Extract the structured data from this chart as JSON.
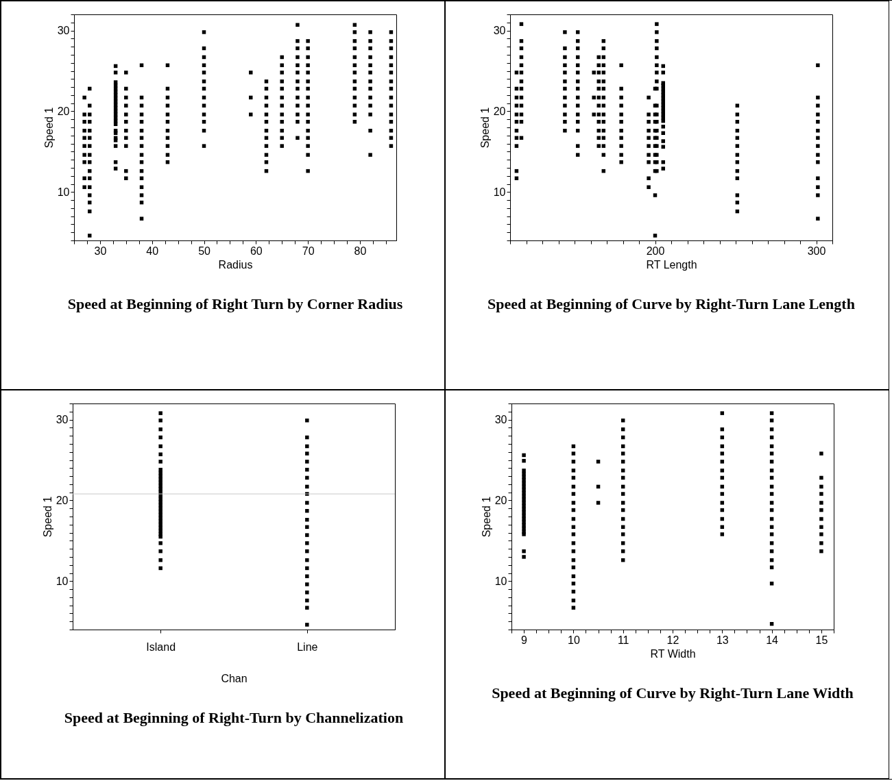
{
  "chart_data": [
    {
      "type": "scatter",
      "title": "Speed at Beginning of Right Turn by Corner Radius",
      "xlabel": "Radius",
      "ylabel": "Speed 1",
      "marker": "square",
      "xlim": [
        25,
        87
      ],
      "ylim": [
        4,
        32
      ],
      "xticks": [
        {
          "value": 25,
          "label": null
        },
        {
          "value": 27.5,
          "label": null
        },
        30,
        {
          "value": 32.5,
          "label": null
        },
        {
          "value": 35,
          "label": null
        },
        {
          "value": 37.5,
          "label": null
        },
        40,
        {
          "value": 42.5,
          "label": null
        },
        {
          "value": 45,
          "label": null
        },
        {
          "value": 47.5,
          "label": null
        },
        50,
        {
          "value": 52.5,
          "label": null
        },
        {
          "value": 55,
          "label": null
        },
        {
          "value": 57.5,
          "label": null
        },
        60,
        {
          "value": 62.5,
          "label": null
        },
        {
          "value": 65,
          "label": null
        },
        {
          "value": 67.5,
          "label": null
        },
        70,
        {
          "value": 72.5,
          "label": null
        },
        {
          "value": 75,
          "label": null
        },
        {
          "value": 77.5,
          "label": null
        },
        80,
        {
          "value": 82.5,
          "label": null
        },
        {
          "value": 85,
          "label": null
        }
      ],
      "yticks": [
        {
          "value": 4,
          "label": null
        },
        {
          "value": 5,
          "label": null
        },
        {
          "value": 6,
          "label": null
        },
        {
          "value": 7,
          "label": null
        },
        {
          "value": 8,
          "label": null
        },
        {
          "value": 9,
          "label": null
        },
        10,
        {
          "value": 11,
          "label": null
        },
        {
          "value": 12,
          "label": null
        },
        {
          "value": 13,
          "label": null
        },
        {
          "value": 14,
          "label": null
        },
        {
          "value": 15,
          "label": null
        },
        {
          "value": 16,
          "label": null
        },
        {
          "value": 17,
          "label": null
        },
        {
          "value": 18,
          "label": null
        },
        {
          "value": 19,
          "label": null
        },
        20,
        {
          "value": 21,
          "label": null
        },
        {
          "value": 22,
          "label": null
        },
        {
          "value": 23,
          "label": null
        },
        {
          "value": 24,
          "label": null
        },
        {
          "value": 25,
          "label": null
        },
        {
          "value": 26,
          "label": null
        },
        {
          "value": 27,
          "label": null
        },
        {
          "value": 28,
          "label": null
        },
        {
          "value": 29,
          "label": null
        },
        30,
        {
          "value": 31,
          "label": null
        },
        {
          "value": 32,
          "label": null
        }
      ],
      "series": [
        {
          "color": "#000000",
          "x": [
            27,
            27,
            27,
            27,
            27,
            27,
            27,
            27,
            27,
            27,
            28,
            28,
            28,
            28,
            28,
            28,
            28,
            28,
            28,
            28,
            28,
            28,
            28,
            28,
            28,
            28,
            33,
            33,
            33,
            33,
            33,
            33,
            33,
            33,
            33,
            33,
            33,
            33,
            33,
            33,
            33,
            33,
            33,
            33,
            33,
            33,
            33,
            33,
            33,
            35,
            35,
            35,
            35,
            35,
            35,
            35,
            35,
            35,
            35,
            35,
            38,
            38,
            38,
            38,
            38,
            38,
            38,
            38,
            38,
            38,
            38,
            38,
            38,
            38,
            38,
            38,
            43,
            43,
            43,
            43,
            43,
            43,
            43,
            43,
            43,
            43,
            43,
            50,
            50,
            50,
            50,
            50,
            50,
            50,
            50,
            50,
            50,
            50,
            50,
            50,
            59,
            59,
            59,
            62,
            62,
            62,
            62,
            62,
            62,
            62,
            62,
            62,
            62,
            62,
            62,
            65,
            65,
            65,
            65,
            65,
            65,
            65,
            65,
            65,
            65,
            65,
            65,
            68,
            68,
            68,
            68,
            68,
            68,
            68,
            68,
            68,
            68,
            68,
            68,
            68,
            70,
            70,
            70,
            70,
            70,
            70,
            70,
            70,
            70,
            70,
            70,
            70,
            70,
            70,
            70,
            70,
            79,
            79,
            79,
            79,
            79,
            79,
            79,
            79,
            79,
            79,
            79,
            79,
            79,
            82,
            82,
            82,
            82,
            82,
            82,
            82,
            82,
            82,
            82,
            82,
            82,
            82,
            86,
            86,
            86,
            86,
            86,
            86,
            86,
            86,
            86,
            86,
            86,
            86,
            86,
            86,
            86
          ],
          "values": [
            21.7,
            19.6,
            18.7,
            17.6,
            16.7,
            15.7,
            14.6,
            13.7,
            11.7,
            10.6,
            22.8,
            20.7,
            19.6,
            18.7,
            17.6,
            16.7,
            15.7,
            14.6,
            13.7,
            12.6,
            11.7,
            10.6,
            9.6,
            8.7,
            7.6,
            4.6,
            25.6,
            24.8,
            23.6,
            23.2,
            22.8,
            22.4,
            22.0,
            21.6,
            21.2,
            20.8,
            20.4,
            20.0,
            19.6,
            19.2,
            18.8,
            18.4,
            17.6,
            17.3,
            16.7,
            16.4,
            15.7,
            13.7,
            12.9,
            24.8,
            22.8,
            21.7,
            20.7,
            19.6,
            18.7,
            17.6,
            16.7,
            15.7,
            12.6,
            11.7,
            25.7,
            21.7,
            20.7,
            19.6,
            18.7,
            17.6,
            16.7,
            15.7,
            14.6,
            13.7,
            12.6,
            11.7,
            10.6,
            9.6,
            8.7,
            6.7,
            25.7,
            22.8,
            21.7,
            20.7,
            19.6,
            18.7,
            17.6,
            16.7,
            15.7,
            14.6,
            13.7,
            29.8,
            27.8,
            26.7,
            25.7,
            24.8,
            23.7,
            22.8,
            21.7,
            20.7,
            19.6,
            18.7,
            17.6,
            15.7,
            24.8,
            21.7,
            19.6,
            23.7,
            22.8,
            21.7,
            20.7,
            19.6,
            18.7,
            17.6,
            16.7,
            15.7,
            14.6,
            13.7,
            12.6,
            26.7,
            25.7,
            24.8,
            23.7,
            22.8,
            21.7,
            20.7,
            19.6,
            18.7,
            17.6,
            16.7,
            15.7,
            30.7,
            28.7,
            27.8,
            26.7,
            25.7,
            24.8,
            23.7,
            22.8,
            21.7,
            20.7,
            19.6,
            18.7,
            16.7,
            28.7,
            27.8,
            26.7,
            25.7,
            24.8,
            23.7,
            22.8,
            21.7,
            20.7,
            19.6,
            18.7,
            17.6,
            16.7,
            15.7,
            14.6,
            12.6,
            30.7,
            29.8,
            28.7,
            27.8,
            26.7,
            25.7,
            24.8,
            23.7,
            22.8,
            21.7,
            20.7,
            19.6,
            18.7,
            29.8,
            28.7,
            27.8,
            26.7,
            25.7,
            24.8,
            23.7,
            22.8,
            21.7,
            20.7,
            19.6,
            17.6,
            14.6,
            29.8,
            28.7,
            27.8,
            26.7,
            25.7,
            24.8,
            23.7,
            22.8,
            21.7,
            20.7,
            19.6,
            18.7,
            17.6,
            16.7,
            15.7
          ]
        }
      ]
    },
    {
      "type": "scatter",
      "title": "Speed at Beginning of Curve by Right-Turn Lane Length",
      "xlabel": "RT Length",
      "ylabel": "Speed 1",
      "marker": "square",
      "xlim": [
        110,
        310
      ],
      "ylim": [
        4,
        32
      ],
      "xticks": [
        {
          "value": 110,
          "label": null
        },
        {
          "value": 120,
          "label": null
        },
        {
          "value": 130,
          "label": null
        },
        {
          "value": 140,
          "label": null
        },
        {
          "value": 150,
          "label": null
        },
        {
          "value": 160,
          "label": null
        },
        {
          "value": 170,
          "label": null
        },
        {
          "value": 180,
          "label": null
        },
        {
          "value": 190,
          "label": null
        },
        200,
        {
          "value": 210,
          "label": null
        },
        {
          "value": 220,
          "label": null
        },
        {
          "value": 230,
          "label": null
        },
        {
          "value": 240,
          "label": null
        },
        {
          "value": 250,
          "label": null
        },
        {
          "value": 260,
          "label": null
        },
        {
          "value": 270,
          "label": null
        },
        {
          "value": 280,
          "label": null
        },
        {
          "value": 290,
          "label": null
        },
        300,
        {
          "value": 310,
          "label": null
        }
      ],
      "yticks": [
        {
          "value": 4,
          "label": null
        },
        {
          "value": 5,
          "label": null
        },
        {
          "value": 6,
          "label": null
        },
        {
          "value": 7,
          "label": null
        },
        {
          "value": 8,
          "label": null
        },
        {
          "value": 9,
          "label": null
        },
        10,
        {
          "value": 11,
          "label": null
        },
        {
          "value": 12,
          "label": null
        },
        {
          "value": 13,
          "label": null
        },
        {
          "value": 14,
          "label": null
        },
        {
          "value": 15,
          "label": null
        },
        {
          "value": 16,
          "label": null
        },
        {
          "value": 17,
          "label": null
        },
        {
          "value": 18,
          "label": null
        },
        {
          "value": 19,
          "label": null
        },
        20,
        {
          "value": 21,
          "label": null
        },
        {
          "value": 22,
          "label": null
        },
        {
          "value": 23,
          "label": null
        },
        {
          "value": 24,
          "label": null
        },
        {
          "value": 25,
          "label": null
        },
        {
          "value": 26,
          "label": null
        },
        {
          "value": 27,
          "label": null
        },
        {
          "value": 28,
          "label": null
        },
        {
          "value": 29,
          "label": null
        },
        30,
        {
          "value": 31,
          "label": null
        },
        {
          "value": 32,
          "label": null
        }
      ],
      "series": [
        {
          "color": "#000000",
          "x": [
            114,
            114,
            114,
            114,
            114,
            114,
            114,
            114,
            114,
            114,
            114,
            117,
            117,
            117,
            117,
            117,
            117,
            117,
            117,
            117,
            117,
            117,
            117,
            117,
            144,
            144,
            144,
            144,
            144,
            144,
            144,
            144,
            144,
            144,
            144,
            144,
            152,
            152,
            152,
            152,
            152,
            152,
            152,
            152,
            152,
            152,
            152,
            152,
            152,
            152,
            152,
            162,
            162,
            162,
            165,
            165,
            165,
            165,
            165,
            165,
            165,
            165,
            165,
            165,
            165,
            165,
            168,
            168,
            168,
            168,
            168,
            168,
            168,
            168,
            168,
            168,
            168,
            168,
            168,
            168,
            168,
            168,
            179,
            179,
            179,
            179,
            179,
            179,
            179,
            179,
            179,
            179,
            179,
            196,
            196,
            196,
            196,
            196,
            196,
            196,
            196,
            196,
            196,
            200,
            200,
            200,
            200,
            200,
            200,
            200,
            200,
            200,
            200,
            200,
            200,
            201,
            201,
            201,
            201,
            201,
            201,
            201,
            201,
            201,
            201,
            201,
            201,
            201,
            201,
            201,
            201,
            201,
            201,
            205,
            205,
            205,
            205,
            205,
            205,
            205,
            205,
            205,
            205,
            205,
            205,
            205,
            205,
            205,
            205,
            205,
            205,
            205,
            205,
            205,
            251,
            251,
            251,
            251,
            251,
            251,
            251,
            251,
            251,
            251,
            251,
            251,
            251,
            301,
            301,
            301,
            301,
            301,
            301,
            301,
            301,
            301,
            301,
            301,
            301,
            301,
            301
          ],
          "values": [
            24.8,
            22.8,
            21.7,
            20.7,
            19.6,
            18.7,
            17.6,
            16.7,
            15.7,
            12.6,
            11.7,
            30.8,
            28.7,
            27.8,
            26.7,
            25.7,
            24.8,
            23.7,
            22.8,
            21.7,
            20.7,
            19.6,
            18.7,
            16.7,
            29.8,
            27.8,
            26.7,
            25.7,
            24.8,
            23.7,
            22.8,
            21.7,
            20.7,
            19.6,
            18.7,
            17.6,
            29.8,
            28.7,
            27.8,
            26.7,
            25.7,
            24.8,
            23.7,
            22.8,
            21.7,
            20.7,
            19.6,
            18.7,
            17.6,
            15.7,
            14.6,
            24.8,
            21.7,
            19.6,
            26.7,
            25.7,
            24.8,
            23.7,
            22.8,
            21.7,
            20.7,
            19.6,
            18.7,
            17.6,
            16.7,
            15.7,
            28.7,
            27.8,
            26.7,
            25.7,
            24.8,
            23.7,
            22.8,
            21.7,
            20.7,
            19.6,
            18.7,
            17.6,
            16.7,
            15.7,
            14.6,
            12.6,
            25.7,
            22.8,
            21.7,
            20.7,
            19.6,
            18.7,
            17.6,
            16.7,
            15.7,
            14.6,
            13.7,
            21.7,
            19.6,
            18.7,
            17.6,
            16.7,
            15.7,
            14.6,
            13.7,
            11.7,
            10.6,
            22.8,
            20.7,
            19.6,
            18.7,
            17.6,
            16.7,
            15.7,
            14.6,
            13.7,
            12.6,
            9.6,
            4.6,
            30.8,
            29.8,
            28.7,
            27.8,
            26.7,
            25.7,
            24.8,
            23.7,
            22.8,
            20.7,
            19.6,
            18.7,
            17.6,
            16.7,
            15.7,
            14.6,
            13.7,
            12.6,
            25.6,
            24.8,
            23.5,
            23.2,
            22.8,
            22.4,
            22.0,
            21.6,
            21.2,
            20.8,
            20.4,
            20.0,
            19.6,
            19.2,
            18.8,
            18.1,
            17.3,
            16.3,
            15.6,
            13.7,
            12.9,
            20.7,
            19.6,
            18.7,
            17.6,
            16.7,
            15.7,
            14.6,
            13.7,
            12.6,
            11.7,
            9.6,
            8.7,
            7.6,
            25.7,
            21.7,
            20.7,
            19.6,
            18.7,
            17.6,
            16.7,
            15.7,
            14.6,
            13.7,
            11.7,
            10.6,
            9.6,
            6.7
          ]
        }
      ]
    },
    {
      "type": "scatter",
      "title": "Speed at Beginning of Right-Turn by Channelization",
      "xlabel": "Chan",
      "ylabel": "Speed 1",
      "marker": "square",
      "categories": [
        "Island",
        "Line"
      ],
      "ylim": [
        4,
        32
      ],
      "yticks": [
        {
          "value": 4,
          "label": null
        },
        {
          "value": 5,
          "label": null
        },
        {
          "value": 6,
          "label": null
        },
        {
          "value": 7,
          "label": null
        },
        {
          "value": 8,
          "label": null
        },
        {
          "value": 9,
          "label": null
        },
        10,
        {
          "value": 11,
          "label": null
        },
        {
          "value": 12,
          "label": null
        },
        {
          "value": 13,
          "label": null
        },
        {
          "value": 14,
          "label": null
        },
        {
          "value": 15,
          "label": null
        },
        {
          "value": 16,
          "label": null
        },
        {
          "value": 17,
          "label": null
        },
        {
          "value": 18,
          "label": null
        },
        {
          "value": 19,
          "label": null
        },
        20,
        {
          "value": 21,
          "label": null
        },
        {
          "value": 22,
          "label": null
        },
        {
          "value": 23,
          "label": null
        },
        {
          "value": 24,
          "label": null
        },
        {
          "value": 25,
          "label": null
        },
        {
          "value": 26,
          "label": null
        },
        {
          "value": 27,
          "label": null
        },
        {
          "value": 28,
          "label": null
        },
        {
          "value": 29,
          "label": null
        },
        30,
        {
          "value": 31,
          "label": null
        },
        {
          "value": 32,
          "label": null
        }
      ],
      "ref_lines": [
        {
          "axis": "y",
          "value": 20.8,
          "color": "#c8c8c8"
        }
      ],
      "series": [
        {
          "color": "#000000",
          "x": [
            "Island",
            "Island",
            "Island",
            "Island",
            "Island",
            "Island",
            "Island",
            "Island",
            "Island",
            "Island",
            "Island",
            "Island",
            "Island",
            "Island",
            "Island",
            "Island",
            "Island",
            "Island",
            "Island",
            "Island",
            "Island",
            "Island",
            "Island",
            "Island",
            "Island",
            "Island",
            "Island",
            "Island",
            "Island",
            "Island",
            "Island",
            "Island",
            "Island",
            "Line",
            "Line",
            "Line",
            "Line",
            "Line",
            "Line",
            "Line",
            "Line",
            "Line",
            "Line",
            "Line",
            "Line",
            "Line",
            "Line",
            "Line",
            "Line",
            "Line",
            "Line",
            "Line",
            "Line",
            "Line",
            "Line",
            "Line",
            "Line"
          ],
          "values": [
            30.8,
            29.9,
            28.8,
            27.8,
            26.7,
            25.7,
            24.8,
            23.8,
            23.4,
            23.0,
            22.6,
            22.2,
            21.8,
            21.4,
            21.0,
            20.6,
            20.2,
            19.8,
            19.4,
            19.0,
            18.6,
            18.2,
            17.8,
            17.4,
            17.0,
            16.6,
            16.2,
            15.8,
            15.5,
            14.7,
            13.7,
            12.6,
            11.6,
            29.9,
            27.8,
            26.7,
            25.8,
            24.8,
            23.8,
            22.8,
            21.7,
            20.8,
            19.7,
            18.7,
            17.6,
            16.7,
            15.7,
            14.7,
            13.7,
            12.6,
            11.6,
            10.6,
            9.6,
            8.6,
            7.6,
            6.7,
            4.6
          ]
        }
      ]
    },
    {
      "type": "scatter",
      "title": "Speed at Beginning of Curve by Right-Turn Lane Width",
      "xlabel": "RT Width",
      "ylabel": "Speed 1",
      "marker": "square",
      "xlim": [
        8.75,
        15.25
      ],
      "ylim": [
        4,
        32
      ],
      "xticks": [
        {
          "value": 8.75,
          "label": null
        },
        9,
        {
          "value": 9.25,
          "label": null
        },
        {
          "value": 9.5,
          "label": null
        },
        {
          "value": 9.75,
          "label": null
        },
        10,
        {
          "value": 10.25,
          "label": null
        },
        {
          "value": 10.5,
          "label": null
        },
        {
          "value": 10.75,
          "label": null
        },
        11,
        {
          "value": 11.25,
          "label": null
        },
        {
          "value": 11.5,
          "label": null
        },
        {
          "value": 11.75,
          "label": null
        },
        12,
        {
          "value": 12.25,
          "label": null
        },
        {
          "value": 12.5,
          "label": null
        },
        {
          "value": 12.75,
          "label": null
        },
        13,
        {
          "value": 13.25,
          "label": null
        },
        {
          "value": 13.5,
          "label": null
        },
        {
          "value": 13.75,
          "label": null
        },
        14,
        {
          "value": 14.25,
          "label": null
        },
        {
          "value": 14.5,
          "label": null
        },
        {
          "value": 14.75,
          "label": null
        },
        15,
        {
          "value": 15.25,
          "label": null
        }
      ],
      "yticks": [
        {
          "value": 4,
          "label": null
        },
        {
          "value": 5,
          "label": null
        },
        {
          "value": 6,
          "label": null
        },
        {
          "value": 7,
          "label": null
        },
        {
          "value": 8,
          "label": null
        },
        {
          "value": 9,
          "label": null
        },
        10,
        {
          "value": 11,
          "label": null
        },
        {
          "value": 12,
          "label": null
        },
        {
          "value": 13,
          "label": null
        },
        {
          "value": 14,
          "label": null
        },
        {
          "value": 15,
          "label": null
        },
        {
          "value": 16,
          "label": null
        },
        {
          "value": 17,
          "label": null
        },
        {
          "value": 18,
          "label": null
        },
        {
          "value": 19,
          "label": null
        },
        20,
        {
          "value": 21,
          "label": null
        },
        {
          "value": 22,
          "label": null
        },
        {
          "value": 23,
          "label": null
        },
        {
          "value": 24,
          "label": null
        },
        {
          "value": 25,
          "label": null
        },
        {
          "value": 26,
          "label": null
        },
        {
          "value": 27,
          "label": null
        },
        {
          "value": 28,
          "label": null
        },
        {
          "value": 29,
          "label": null
        },
        30,
        {
          "value": 31,
          "label": null
        },
        {
          "value": 32,
          "label": null
        }
      ],
      "series": [
        {
          "color": "#000000",
          "x": [
            9,
            9,
            9,
            9,
            9,
            9,
            9,
            9,
            9,
            9,
            9,
            9,
            9,
            9,
            9,
            9,
            9,
            9,
            9,
            9,
            9,
            9,
            9,
            9,
            9,
            10,
            10,
            10,
            10,
            10,
            10,
            10,
            10,
            10,
            10,
            10,
            10,
            10,
            10,
            10,
            10,
            10,
            10,
            10,
            10,
            10,
            10.5,
            10.5,
            10.5,
            11,
            11,
            11,
            11,
            11,
            11,
            11,
            11,
            11,
            11,
            11,
            11,
            11,
            11,
            11,
            11,
            11,
            11,
            13,
            13,
            13,
            13,
            13,
            13,
            13,
            13,
            13,
            13,
            13,
            13,
            13,
            13,
            13,
            14,
            14,
            14,
            14,
            14,
            14,
            14,
            14,
            14,
            14,
            14,
            14,
            14,
            14,
            14,
            14,
            14,
            14,
            14,
            14,
            14,
            14,
            15,
            15,
            15,
            15,
            15,
            15,
            15,
            15,
            15,
            15,
            15
          ],
          "values": [
            25.6,
            24.9,
            23.7,
            23.3,
            22.9,
            22.5,
            22.1,
            21.7,
            21.3,
            20.9,
            20.5,
            20.1,
            19.7,
            19.3,
            18.9,
            18.5,
            18.1,
            17.7,
            17.3,
            16.9,
            16.5,
            16.1,
            15.8,
            13.7,
            13.0,
            26.7,
            25.8,
            24.8,
            23.7,
            22.8,
            21.7,
            20.8,
            19.7,
            18.8,
            17.7,
            16.7,
            15.8,
            14.7,
            13.7,
            12.6,
            11.7,
            10.6,
            9.7,
            8.7,
            7.6,
            6.7,
            24.8,
            21.7,
            19.7,
            29.9,
            28.8,
            27.8,
            26.7,
            25.8,
            24.8,
            23.7,
            22.8,
            21.7,
            20.8,
            19.7,
            18.8,
            17.7,
            16.7,
            15.8,
            14.7,
            13.7,
            12.6,
            30.8,
            28.8,
            27.8,
            26.7,
            25.8,
            24.8,
            23.7,
            22.8,
            21.7,
            20.8,
            19.7,
            18.8,
            17.7,
            16.7,
            15.8,
            30.8,
            29.9,
            28.8,
            27.8,
            26.7,
            25.8,
            24.8,
            23.7,
            22.8,
            21.7,
            20.8,
            19.7,
            18.8,
            17.7,
            16.7,
            15.8,
            14.7,
            13.7,
            12.6,
            11.7,
            9.7,
            4.7,
            25.8,
            22.8,
            21.7,
            20.8,
            19.7,
            18.8,
            17.7,
            16.7,
            15.8,
            14.7,
            13.7
          ]
        }
      ]
    }
  ]
}
